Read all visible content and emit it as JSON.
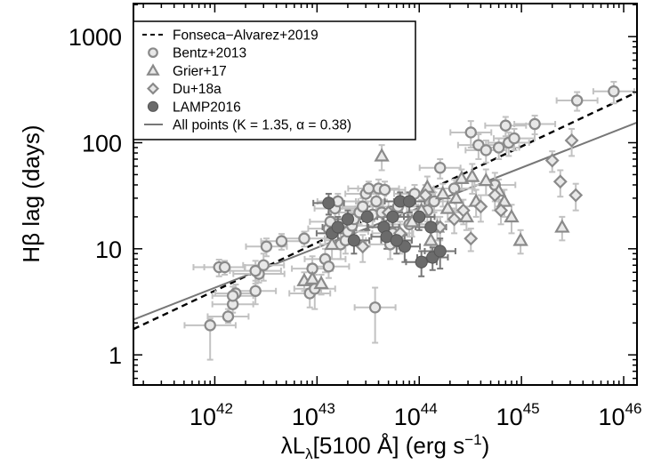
{
  "chart_data": {
    "type": "scatter",
    "xscale": "log",
    "yscale": "log",
    "xlim": [
      1.6e+41,
      1.35e+46
    ],
    "ylim": [
      0.52,
      2050
    ],
    "grid": false,
    "legend_placement": "top-left",
    "xlabel": {
      "pre": "λL",
      "sub": "λ",
      "post": "[5100 Å] (erg s",
      "sup": "−1",
      "close": ")"
    },
    "ylabel": "Hβ lag (days)",
    "x_ticks": [
      {
        "value": 1e+42,
        "base": "10",
        "exp": "42"
      },
      {
        "value": 1e+43,
        "base": "10",
        "exp": "43"
      },
      {
        "value": 1e+44,
        "base": "10",
        "exp": "44"
      },
      {
        "value": 1e+45,
        "base": "10",
        "exp": "45"
      },
      {
        "value": 1e+46,
        "base": "10",
        "exp": "46"
      }
    ],
    "y_ticks": [
      {
        "value": 1,
        "label": "1"
      },
      {
        "value": 10,
        "label": "10"
      },
      {
        "value": 100,
        "label": "100"
      },
      {
        "value": 1000,
        "label": "1000"
      }
    ],
    "legend": [
      {
        "label": "Fonseca−Alvarez+2019",
        "kind": "line-dashed"
      },
      {
        "label": "Bentz+2013",
        "kind": "circle-open"
      },
      {
        "label": "Grier+17",
        "kind": "triangle"
      },
      {
        "label": "Du+18a",
        "kind": "diamond"
      },
      {
        "label": "LAMP2016",
        "kind": "circle-filled"
      },
      {
        "label": "All points (K = 1.35, α = 0.38)",
        "kind": "line-solid"
      }
    ],
    "fit_lines": [
      {
        "name": "Fonseca−Alvarez+2019",
        "style": "dashed",
        "color": "#000000",
        "points": [
          [
            1.6e+41,
            1.75
          ],
          [
            1.35e+46,
            300
          ]
        ]
      },
      {
        "name": "All points (K = 1.35, α = 0.38)",
        "style": "solid",
        "color": "#777777",
        "points": [
          [
            1.6e+41,
            2.15
          ],
          [
            1.35e+46,
            155
          ]
        ]
      }
    ],
    "colors": {
      "open_marker_fill": "#e8e8e8",
      "open_marker_edge": "#8a8a8a",
      "filled_marker": "#6b6b6b",
      "error_bar": "#c2c2c2"
    },
    "series": [
      {
        "name": "Bentz+2013",
        "marker": "circle-open",
        "points": [
          [
            9e+41,
            1.9,
            0.25,
            1,
            0.3
          ],
          [
            1.1e+42,
            6.7,
            0.25,
            1.2,
            1.2
          ],
          [
            1.25e+42,
            6.7,
            0.2,
            1,
            1
          ],
          [
            1.35e+42,
            2.3,
            0.2,
            0.3,
            0.4
          ],
          [
            1.5e+42,
            3.0,
            0.2,
            0.5,
            0.5
          ],
          [
            1.6e+42,
            3.8,
            0.2,
            0.8,
            0.8
          ],
          [
            1.5e+42,
            3.6,
            0.2,
            0.8,
            0.8
          ],
          [
            2.5e+42,
            4.0,
            0.2,
            1,
            1
          ],
          [
            2.7e+42,
            5.8,
            0.25,
            1,
            1
          ],
          [
            2.5e+42,
            6.2,
            0.25,
            1.5,
            1.5
          ],
          [
            3e+42,
            7.0,
            0.2,
            2,
            2
          ],
          [
            3.2e+42,
            10.5,
            0.2,
            2,
            2
          ],
          [
            4.5e+42,
            11.8,
            0.2,
            2,
            2
          ],
          [
            7.5e+42,
            12.5,
            0.2,
            2,
            2
          ],
          [
            8.5e+42,
            3.8,
            0.2,
            1,
            1
          ],
          [
            9.5e+42,
            4.2,
            0.2,
            1.5,
            1.5
          ],
          [
            9e+42,
            6.5,
            0.2,
            2,
            2
          ],
          [
            1.2e+43,
            8.0,
            0.2,
            2,
            2
          ],
          [
            1.3e+43,
            6.8,
            0.2,
            1.5,
            1.5
          ],
          [
            1.3e+43,
            15.5,
            0.2,
            3,
            3
          ],
          [
            1.35e+43,
            18,
            0.2,
            4,
            4
          ],
          [
            1.5e+43,
            24,
            0.2,
            5,
            5
          ],
          [
            1.6e+43,
            28,
            0.2,
            5,
            5
          ],
          [
            1.7e+43,
            11,
            0.2,
            3,
            3
          ],
          [
            1.9e+43,
            12,
            0.2,
            3,
            3
          ],
          [
            2e+43,
            14.5,
            0.2,
            3,
            3
          ],
          [
            2.2e+43,
            16.5,
            0.2,
            4,
            4
          ],
          [
            2.3e+43,
            19,
            0.2,
            4,
            4
          ],
          [
            2.6e+43,
            22,
            0.2,
            5,
            5
          ],
          [
            2.8e+43,
            25,
            0.2,
            5,
            5
          ],
          [
            3e+43,
            33,
            0.2,
            6,
            6
          ],
          [
            3.2e+43,
            37,
            0.2,
            6,
            6
          ],
          [
            3.5e+43,
            21,
            0.2,
            5,
            5
          ],
          [
            3.7e+43,
            2.8,
            0.2,
            1.5,
            1.5
          ],
          [
            3.8e+43,
            28,
            0.2,
            6,
            6
          ],
          [
            4e+43,
            37,
            0.2,
            8,
            8
          ],
          [
            4.3e+43,
            22,
            0.2,
            5,
            5
          ],
          [
            4.6e+43,
            36,
            0.2,
            7,
            7
          ],
          [
            5.2e+43,
            11,
            0.2,
            3,
            3
          ],
          [
            5.5e+43,
            14,
            0.2,
            3,
            3
          ],
          [
            6.2e+43,
            25,
            0.2,
            5,
            5
          ],
          [
            8e+43,
            17,
            0.2,
            4,
            4
          ],
          [
            9e+43,
            33,
            0.2,
            7,
            7
          ],
          [
            1.2e+44,
            23,
            0.2,
            5,
            5
          ],
          [
            1.4e+44,
            28,
            0.2,
            6,
            6
          ],
          [
            1.6e+44,
            58,
            0.2,
            12,
            12
          ],
          [
            2.2e+44,
            37,
            0.2,
            8,
            8
          ],
          [
            3.2e+44,
            125,
            0.2,
            35,
            35
          ],
          [
            3.8e+44,
            95,
            0.2,
            25,
            25
          ],
          [
            5.5e+44,
            40,
            0.2,
            12,
            12
          ],
          [
            6e+44,
            90,
            0.2,
            20,
            20
          ],
          [
            7e+44,
            145,
            0.2,
            30,
            30
          ],
          [
            7.5e+44,
            100,
            0.2,
            25,
            25
          ],
          [
            8.5e+44,
            110,
            0.2,
            25,
            25
          ],
          [
            1.35e+45,
            150,
            0.2,
            30,
            30
          ],
          [
            3.5e+45,
            250,
            0.2,
            50,
            50
          ],
          [
            8e+45,
            305,
            0.2,
            70,
            70
          ],
          [
            4.5e+44,
            85,
            0.2,
            20,
            20
          ]
        ]
      },
      {
        "name": "Grier+17",
        "marker": "triangle",
        "points": [
          [
            7.5e+42,
            5.0,
            0,
            1,
            1
          ],
          [
            9e+42,
            5.2,
            0,
            1.2,
            1.2
          ],
          [
            1.1e+43,
            4.7,
            0,
            1,
            1
          ],
          [
            1.4e+43,
            11,
            0,
            3,
            3
          ],
          [
            4.3e+43,
            75,
            0,
            20,
            20
          ],
          [
            6.5e+43,
            12,
            0,
            3,
            3
          ],
          [
            8.5e+43,
            18,
            0,
            5,
            5
          ],
          [
            1.2e+44,
            38,
            0,
            10,
            10
          ],
          [
            1.3e+44,
            12,
            0,
            4,
            4
          ],
          [
            1.5e+44,
            16,
            0,
            4,
            4
          ],
          [
            1.7e+44,
            33,
            0,
            8,
            8
          ],
          [
            1.9e+44,
            24,
            0,
            6,
            6
          ],
          [
            2.3e+44,
            30,
            0,
            8,
            8
          ],
          [
            2.6e+44,
            46,
            0,
            10,
            10
          ],
          [
            2.9e+44,
            20,
            0,
            5,
            5
          ],
          [
            3.3e+44,
            48,
            0,
            15,
            15
          ],
          [
            3.6e+44,
            28,
            0,
            8,
            8
          ],
          [
            4.5e+44,
            44,
            0,
            12,
            12
          ],
          [
            6e+44,
            35,
            0,
            10,
            10
          ],
          [
            6.8e+44,
            28,
            0,
            8,
            8
          ],
          [
            8e+44,
            20,
            0,
            6,
            6
          ],
          [
            9.8e+44,
            12,
            0,
            3,
            3
          ],
          [
            2.5e+45,
            16,
            0,
            4,
            4
          ],
          [
            1.05e+44,
            23,
            0,
            6,
            6
          ]
        ]
      },
      {
        "name": "Du+18a",
        "marker": "diamond",
        "points": [
          [
            2.8e+43,
            10.5,
            0,
            3,
            3
          ],
          [
            5e+43,
            22,
            0,
            6,
            6
          ],
          [
            6.5e+43,
            14,
            0,
            4,
            4
          ],
          [
            1.15e+44,
            32,
            0,
            8,
            8
          ],
          [
            1.6e+44,
            16,
            0,
            4,
            4
          ],
          [
            2.2e+44,
            19,
            0,
            5,
            5
          ],
          [
            2.7e+44,
            23,
            0,
            6,
            6
          ],
          [
            3.2e+44,
            12.5,
            0,
            3,
            3
          ],
          [
            4e+44,
            25,
            0,
            7,
            7
          ],
          [
            5.5e+44,
            32,
            0,
            9,
            9
          ],
          [
            6.3e+44,
            23,
            0,
            6,
            6
          ],
          [
            2e+45,
            68,
            0,
            15,
            15
          ],
          [
            2.4e+45,
            43,
            0,
            12,
            12
          ],
          [
            3.4e+45,
            32,
            0,
            9,
            9
          ],
          [
            3.1e+45,
            105,
            0,
            30,
            30
          ]
        ]
      },
      {
        "name": "LAMP2016",
        "marker": "circle-filled",
        "points": [
          [
            1.3e+43,
            27,
            0.15,
            6,
            6
          ],
          [
            1.4e+43,
            14,
            0.15,
            3,
            3
          ],
          [
            1.6e+43,
            16,
            0.15,
            4,
            4
          ],
          [
            2e+43,
            19,
            0.15,
            4,
            4
          ],
          [
            2.3e+43,
            12,
            0.15,
            3,
            3
          ],
          [
            3.1e+43,
            20,
            0.15,
            5,
            5
          ],
          [
            4.5e+43,
            16,
            0.15,
            4,
            4
          ],
          [
            4.8e+43,
            13,
            0.15,
            3,
            3
          ],
          [
            5.5e+43,
            20,
            0.15,
            5,
            5
          ],
          [
            6.5e+43,
            28,
            0.15,
            6,
            6
          ],
          [
            7.2e+43,
            10.5,
            0.15,
            3,
            3
          ],
          [
            8e+43,
            28,
            0.15,
            6,
            6
          ],
          [
            1e+44,
            20,
            0.15,
            5,
            5
          ],
          [
            1.05e+44,
            7.5,
            0.15,
            2,
            2
          ],
          [
            1.3e+44,
            16,
            0.15,
            4,
            4
          ],
          [
            1.35e+44,
            8.3,
            0.15,
            2,
            2
          ],
          [
            1.6e+44,
            9.5,
            0.15,
            3,
            3
          ],
          [
            6e+43,
            12,
            0.15,
            3,
            3
          ]
        ]
      }
    ]
  }
}
